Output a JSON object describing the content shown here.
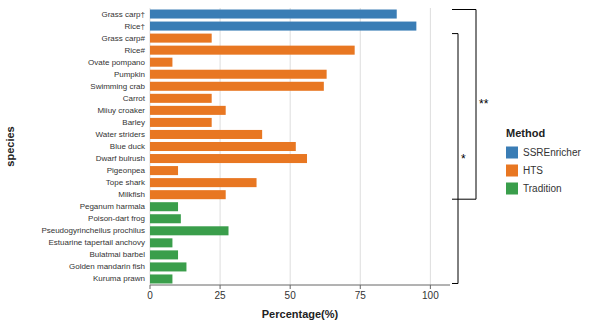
{
  "chart_data": {
    "type": "bar",
    "orientation": "horizontal",
    "xlabel": "Percentage(%)",
    "ylabel": "species",
    "categories": [
      "Grass carp†",
      "Rice†",
      "Grass carp#",
      "Rice#",
      "Ovate pompano",
      "Pumpkin",
      "Swimming crab",
      "Carrot",
      "Miiuy croaker",
      "Barley",
      "Water striders",
      "Blue duck",
      "Dwarf bulrush",
      "Pigeonpea",
      "Tope shark",
      "Milkfish",
      "Peganum harmala",
      "Poison-dart frog",
      "Pseudogyrincheilus prochilus",
      "Estuarine tapertail anchovy",
      "Bulatmai barbel",
      "Golden mandarin fish",
      "Kuruma prawn"
    ],
    "series": [
      {
        "name": "SSREnricher",
        "color": "#3a7db5",
        "values": [
          88,
          95,
          null,
          null,
          null,
          null,
          null,
          null,
          null,
          null,
          null,
          null,
          null,
          null,
          null,
          null,
          null,
          null,
          null,
          null,
          null,
          null,
          null
        ]
      },
      {
        "name": "HTS",
        "color": "#e87722",
        "values": [
          null,
          null,
          22,
          73,
          8,
          63,
          62,
          22,
          27,
          22,
          40,
          52,
          56,
          10,
          38,
          27,
          null,
          null,
          null,
          null,
          null,
          null,
          null
        ]
      },
      {
        "name": "Tradition",
        "color": "#3a9e4b",
        "values": [
          null,
          null,
          null,
          null,
          null,
          null,
          null,
          null,
          null,
          null,
          null,
          null,
          null,
          null,
          null,
          null,
          10,
          11,
          28,
          8,
          10,
          13,
          8
        ]
      }
    ],
    "xlim": [
      0,
      107
    ],
    "xticks": [
      0,
      25,
      50,
      75,
      100
    ],
    "grid": true,
    "legend": "right",
    "legend_title": "Method",
    "annotations": [
      {
        "text": "**",
        "between": [
          "SSREnricher",
          "HTS"
        ]
      },
      {
        "text": "*",
        "between": [
          "HTS",
          "Tradition"
        ]
      }
    ]
  }
}
